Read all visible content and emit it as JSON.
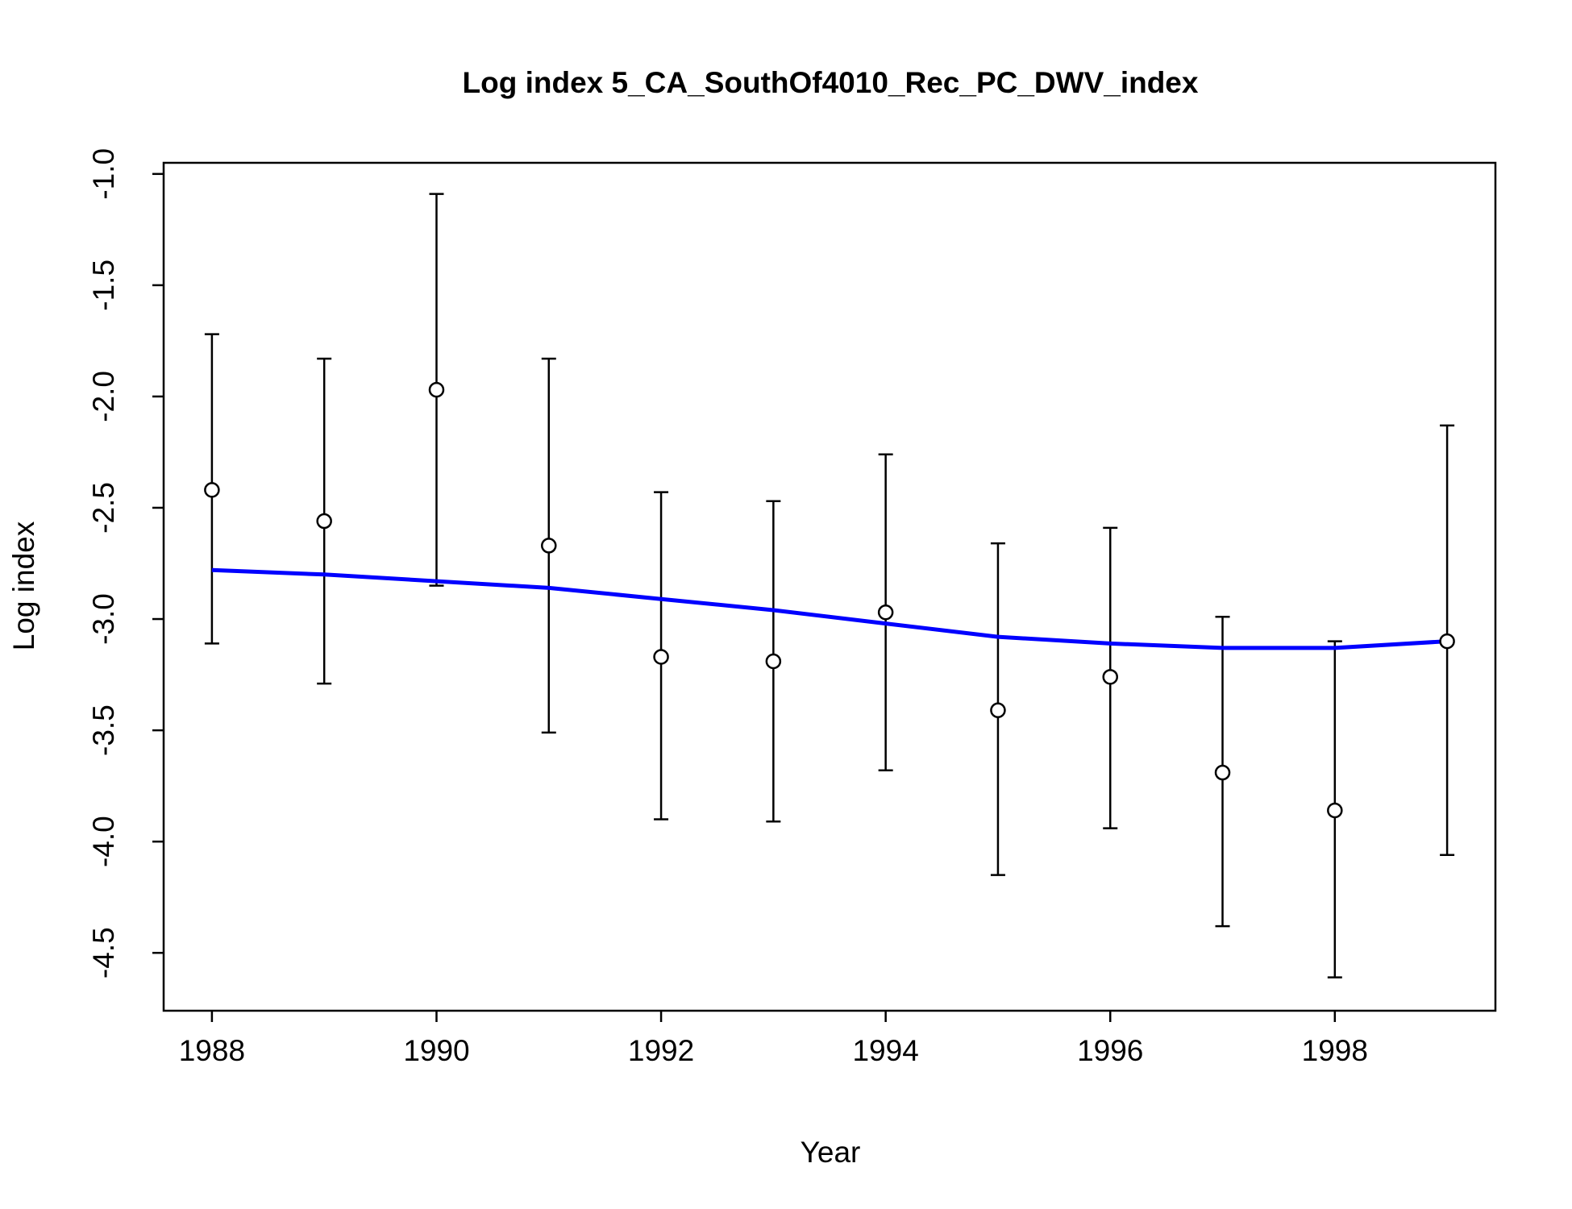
{
  "chart_data": {
    "type": "scatter",
    "title": "Log index 5_CA_SouthOf4010_Rec_PC_DWV_index",
    "xlabel": "Year",
    "ylabel": "Log index",
    "xlim": [
      1987.57,
      1999.43
    ],
    "ylim": [
      -4.76,
      -0.95
    ],
    "x_ticks": [
      "1988",
      "1990",
      "1992",
      "1994",
      "1996",
      "1998"
    ],
    "y_ticks": [
      "-1.0",
      "-1.5",
      "-2.0",
      "-2.5",
      "-3.0",
      "-3.5",
      "-4.0",
      "-4.5"
    ],
    "grid": false,
    "legend": "none",
    "colors": {
      "observed": "#000000",
      "fitted": "#0000ff"
    },
    "series": [
      {
        "kind": "observed",
        "x": [
          1988,
          1989,
          1990,
          1991,
          1992,
          1993,
          1994,
          1995,
          1996,
          1997,
          1998,
          1999
        ],
        "y": [
          -2.42,
          -2.56,
          -1.97,
          -2.67,
          -3.17,
          -3.19,
          -2.97,
          -3.41,
          -3.26,
          -3.69,
          -3.86,
          -3.1
        ],
        "lower": [
          -3.11,
          -3.29,
          -2.85,
          -3.51,
          -3.9,
          -3.91,
          -3.68,
          -4.15,
          -3.94,
          -4.38,
          -4.61,
          -4.06
        ],
        "upper": [
          -1.72,
          -1.83,
          -1.09,
          -1.83,
          -2.43,
          -2.47,
          -2.26,
          -2.66,
          -2.59,
          -2.99,
          -3.1,
          -2.13
        ]
      },
      {
        "kind": "fitted",
        "x": [
          1988,
          1989,
          1990,
          1991,
          1992,
          1993,
          1994,
          1995,
          1996,
          1997,
          1998,
          1999
        ],
        "y": [
          -2.78,
          -2.8,
          -2.83,
          -2.86,
          -2.91,
          -2.96,
          -3.02,
          -3.08,
          -3.11,
          -3.13,
          -3.13,
          -3.1
        ]
      }
    ]
  }
}
